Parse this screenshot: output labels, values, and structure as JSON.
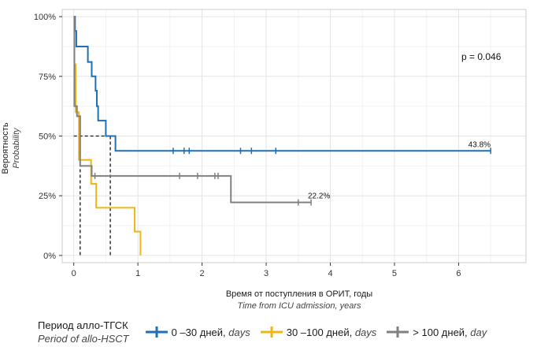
{
  "chart_data": {
    "type": "line",
    "subtype": "kaplan-meier",
    "ylabel": "Вероятность",
    "ylabel_en": "Probability",
    "xlabel": "Время от поступления в ОРИТ, годы",
    "xlabel_en": "Time from ICU admission, years",
    "xlim": [
      -0.18,
      7.05
    ],
    "ylim": [
      -0.03,
      1.03
    ],
    "x_ticks": [
      0,
      1,
      2,
      3,
      4,
      5,
      6
    ],
    "x_tick_labels": [
      "0",
      "1",
      "2",
      "3",
      "4",
      "5",
      "6"
    ],
    "y_ticks": [
      0,
      0.25,
      0.5,
      0.75,
      1.0
    ],
    "y_tick_labels": [
      "0%",
      "25%",
      "50%",
      "75%",
      "100%"
    ],
    "grid": true,
    "annotation": "p = 0.046",
    "legend": {
      "title": "Период алло-ТГСК",
      "title_en": "Period of allo-HSCT",
      "placement": "bottom",
      "items": [
        {
          "label": "0 –30 дней,",
          "label_en": "days"
        },
        {
          "label": "30 –100 дней,",
          "label_en": "days"
        },
        {
          "label": "> 100 дней,",
          "label_en": "day"
        }
      ]
    },
    "median_lines": [
      {
        "x": 0.1,
        "y": 0.5
      },
      {
        "x": 0.57,
        "y": 0.5
      }
    ],
    "series": [
      {
        "color": "#1f6fb4",
        "steps": [
          [
            0,
            1.0
          ],
          [
            0.02,
            0.94
          ],
          [
            0.04,
            0.875
          ],
          [
            0.22,
            0.81
          ],
          [
            0.28,
            0.75
          ],
          [
            0.34,
            0.69
          ],
          [
            0.36,
            0.625
          ],
          [
            0.38,
            0.565
          ],
          [
            0.5,
            0.5
          ],
          [
            0.65,
            0.438
          ],
          [
            6.5,
            0.438
          ]
        ],
        "censored": [
          [
            1.55,
            0.438
          ],
          [
            1.72,
            0.438
          ],
          [
            1.8,
            0.438
          ],
          [
            2.6,
            0.438
          ],
          [
            2.77,
            0.438
          ],
          [
            3.15,
            0.438
          ],
          [
            6.5,
            0.438
          ]
        ],
        "end_label": "43.8%",
        "end_label_at": [
          6.15,
          0.438
        ]
      },
      {
        "color": "#f0b616",
        "steps": [
          [
            0,
            0.8
          ],
          [
            0.03,
            0.6
          ],
          [
            0.08,
            0.4
          ],
          [
            0.27,
            0.3
          ],
          [
            0.35,
            0.2
          ],
          [
            0.95,
            0.1
          ],
          [
            1.04,
            0.0
          ]
        ],
        "censored": [],
        "end_label": "",
        "end_label_at": null
      },
      {
        "color": "#808080",
        "steps": [
          [
            0,
            1.0
          ],
          [
            0.01,
            0.625
          ],
          [
            0.05,
            0.583
          ],
          [
            0.1,
            0.375
          ],
          [
            0.28,
            0.333
          ],
          [
            2.45,
            0.222
          ],
          [
            3.7,
            0.222
          ]
        ],
        "censored": [
          [
            0.33,
            0.333
          ],
          [
            1.65,
            0.333
          ],
          [
            1.93,
            0.333
          ],
          [
            2.2,
            0.333
          ],
          [
            2.25,
            0.333
          ],
          [
            3.5,
            0.222
          ],
          [
            3.7,
            0.222
          ]
        ],
        "end_label": "22.2%",
        "end_label_at": [
          3.65,
          0.222
        ]
      }
    ]
  }
}
